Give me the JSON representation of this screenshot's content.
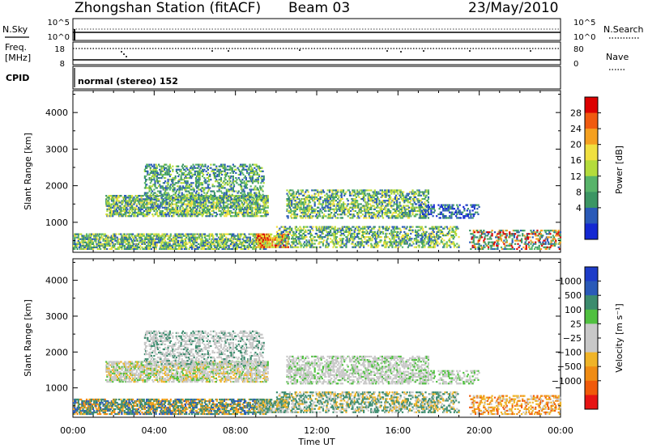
{
  "header": {
    "station": "Zhongshan Station (fitACF)",
    "beam": "Beam 03",
    "date": "23/May/2010"
  },
  "status_panels": {
    "nsky": {
      "label": "N.Sky",
      "left_ticks": [
        "10^5",
        "10^0"
      ],
      "right_ticks": [
        "10^5",
        "10^0"
      ],
      "right_label": "N.Search"
    },
    "freq": {
      "label_top": "Freq.",
      "label_unit": "[MHz]",
      "left_ticks": [
        "18",
        "8"
      ],
      "right_ticks": [
        "80",
        "0"
      ],
      "right_label": "Nave"
    },
    "cpid": {
      "label": "CPID",
      "mode_text": "normal (stereo) 152"
    }
  },
  "chart_data": [
    {
      "type": "heatmap",
      "name": "Power",
      "ylabel": "Slant Range [km]",
      "yticks": [
        "4000",
        "3000",
        "2000",
        "1000"
      ],
      "ylim": [
        180,
        4600
      ],
      "x_ticks": [
        "00:00",
        "04:00",
        "08:00",
        "12:00",
        "16:00",
        "20:00",
        "00:00"
      ],
      "xlim_hours": [
        0,
        24
      ],
      "colorbar": {
        "label": "Power [dB]",
        "tick_labels": [
          "28",
          "24",
          "20",
          "16",
          "12",
          "8",
          "4"
        ],
        "colors": [
          "#dc0000",
          "#f05a10",
          "#f5a020",
          "#f0e040",
          "#b4dc3c",
          "#58b46a",
          "#3c9664",
          "#2a5ab8",
          "#1428d2"
        ]
      }
    },
    {
      "type": "heatmap",
      "name": "Velocity",
      "ylabel": "Slant Range [km]",
      "yticks": [
        "4000",
        "3000",
        "2000",
        "1000"
      ],
      "ylim": [
        180,
        4600
      ],
      "x_ticks": [
        "00:00",
        "04:00",
        "08:00",
        "12:00",
        "16:00",
        "20:00",
        "00:00"
      ],
      "xlabel": "Time UT",
      "xlim_hours": [
        0,
        24
      ],
      "colorbar": {
        "label": "Velocity [m s⁻¹]",
        "tick_labels": [
          "1000",
          "500",
          "100",
          "25",
          "−25",
          "−100",
          "−500",
          "−1000"
        ],
        "colors": [
          "#1e3cc8",
          "#2a5ab8",
          "#3c8c6e",
          "#50c040",
          "#c8c8c8",
          "#c8c8c8",
          "#f0b428",
          "#f08c14",
          "#f05a0a",
          "#e61414"
        ]
      }
    }
  ]
}
